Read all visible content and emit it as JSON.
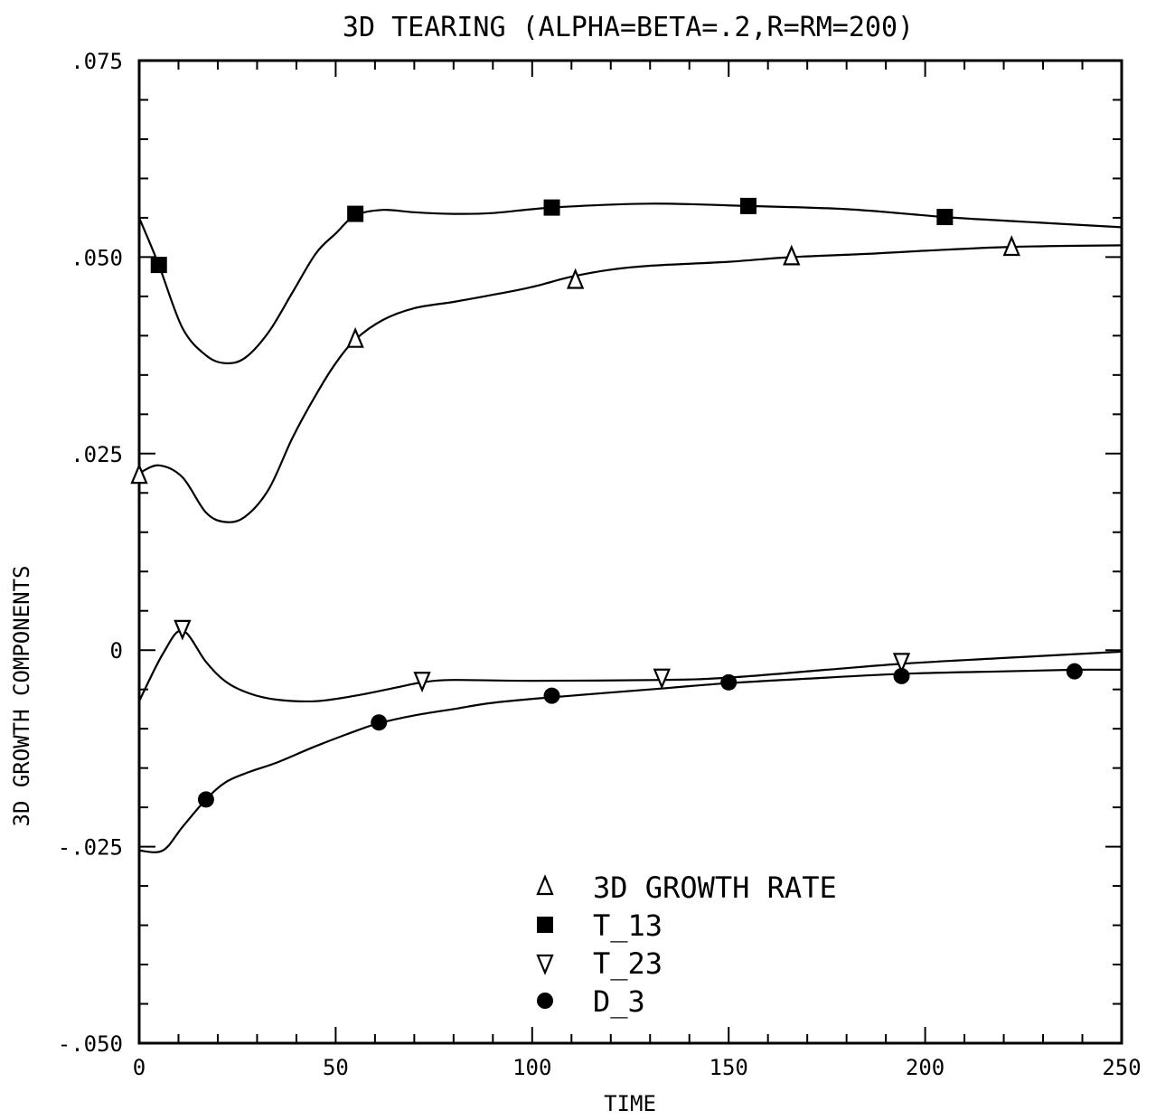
{
  "chart_data": {
    "type": "line",
    "title": "3D TEARING (ALPHA=BETA=.2,R=RM=200)",
    "xlabel": "TIME",
    "ylabel": "3D GROWTH COMPONENTS",
    "xlim": [
      0,
      250
    ],
    "ylim": [
      -0.05,
      0.075
    ],
    "x_ticks": [
      0,
      50,
      100,
      150,
      200,
      250
    ],
    "x_tick_labels": [
      "0",
      "50",
      "100",
      "150",
      "200",
      "250"
    ],
    "y_ticks": [
      -0.05,
      -0.025,
      0,
      0.025,
      0.05,
      0.075
    ],
    "y_tick_labels": [
      "-.050",
      "-.025",
      "0",
      ".025",
      ".050",
      ".075"
    ],
    "grid": false,
    "legend_position": "bottom-center",
    "series": [
      {
        "name": "3D GROWTH RATE",
        "marker": "triangle-up",
        "x": [
          0,
          5,
          11,
          17,
          22,
          27,
          33,
          39,
          45,
          50,
          55,
          62,
          70,
          80,
          90,
          100,
          110,
          120,
          130,
          150,
          166,
          185,
          200,
          222,
          250
        ],
        "y": [
          0.0225,
          0.0235,
          0.022,
          0.0175,
          0.0163,
          0.017,
          0.0205,
          0.027,
          0.0325,
          0.0365,
          0.0395,
          0.042,
          0.0435,
          0.0443,
          0.0452,
          0.0462,
          0.0475,
          0.0484,
          0.0489,
          0.0494,
          0.05,
          0.0504,
          0.0508,
          0.0513,
          0.0515
        ],
        "marker_x": [
          0,
          55,
          111,
          166,
          222
        ],
        "marker_y": [
          0.0222,
          0.0395,
          0.047,
          0.05,
          0.0512
        ]
      },
      {
        "name": "T_13",
        "marker": "square",
        "x": [
          0,
          5,
          11,
          17,
          22,
          27,
          33,
          39,
          45,
          50,
          55,
          62,
          70,
          80,
          90,
          105,
          130,
          155,
          180,
          205,
          225,
          250
        ],
        "y": [
          0.055,
          0.049,
          0.041,
          0.0375,
          0.0365,
          0.0372,
          0.0405,
          0.0455,
          0.0505,
          0.053,
          0.0553,
          0.056,
          0.0557,
          0.0555,
          0.0556,
          0.0563,
          0.0568,
          0.0565,
          0.0561,
          0.0551,
          0.0545,
          0.0538
        ],
        "marker_x": [
          5,
          55,
          105,
          155,
          205
        ],
        "marker_y": [
          0.049,
          0.0555,
          0.0563,
          0.0565,
          0.0551
        ]
      },
      {
        "name": "T_23",
        "marker": "triangle-down",
        "x": [
          0,
          6,
          11,
          17,
          22,
          28,
          35,
          45,
          55,
          65,
          72,
          80,
          100,
          133,
          150,
          175,
          195,
          220,
          250
        ],
        "y": [
          -0.0065,
          -0.0005,
          0.0025,
          -0.0015,
          -0.004,
          -0.0055,
          -0.0063,
          -0.0065,
          -0.0058,
          -0.0048,
          -0.0041,
          -0.0038,
          -0.0039,
          -0.0038,
          -0.0035,
          -0.0025,
          -0.0017,
          -0.001,
          -0.0002
        ],
        "marker_x": [
          11,
          72,
          133,
          194
        ],
        "marker_y": [
          0.0028,
          -0.0038,
          -0.0034,
          -0.0014
        ]
      },
      {
        "name": "D_3",
        "marker": "circle",
        "x": [
          0,
          6,
          11,
          17,
          22,
          28,
          35,
          45,
          55,
          61,
          70,
          80,
          90,
          105,
          130,
          150,
          175,
          195,
          220,
          238,
          250
        ],
        "y": [
          -0.0255,
          -0.0255,
          -0.0225,
          -0.019,
          -0.0168,
          -0.0155,
          -0.0143,
          -0.0122,
          -0.0103,
          -0.0093,
          -0.0083,
          -0.0075,
          -0.0067,
          -0.006,
          -0.005,
          -0.0042,
          -0.0035,
          -0.003,
          -0.0027,
          -0.0025,
          -0.0025
        ],
        "marker_x": [
          17,
          61,
          105,
          150,
          194,
          238
        ],
        "marker_y": [
          -0.019,
          -0.0092,
          -0.0058,
          -0.0041,
          -0.0033,
          -0.0027
        ]
      }
    ]
  }
}
